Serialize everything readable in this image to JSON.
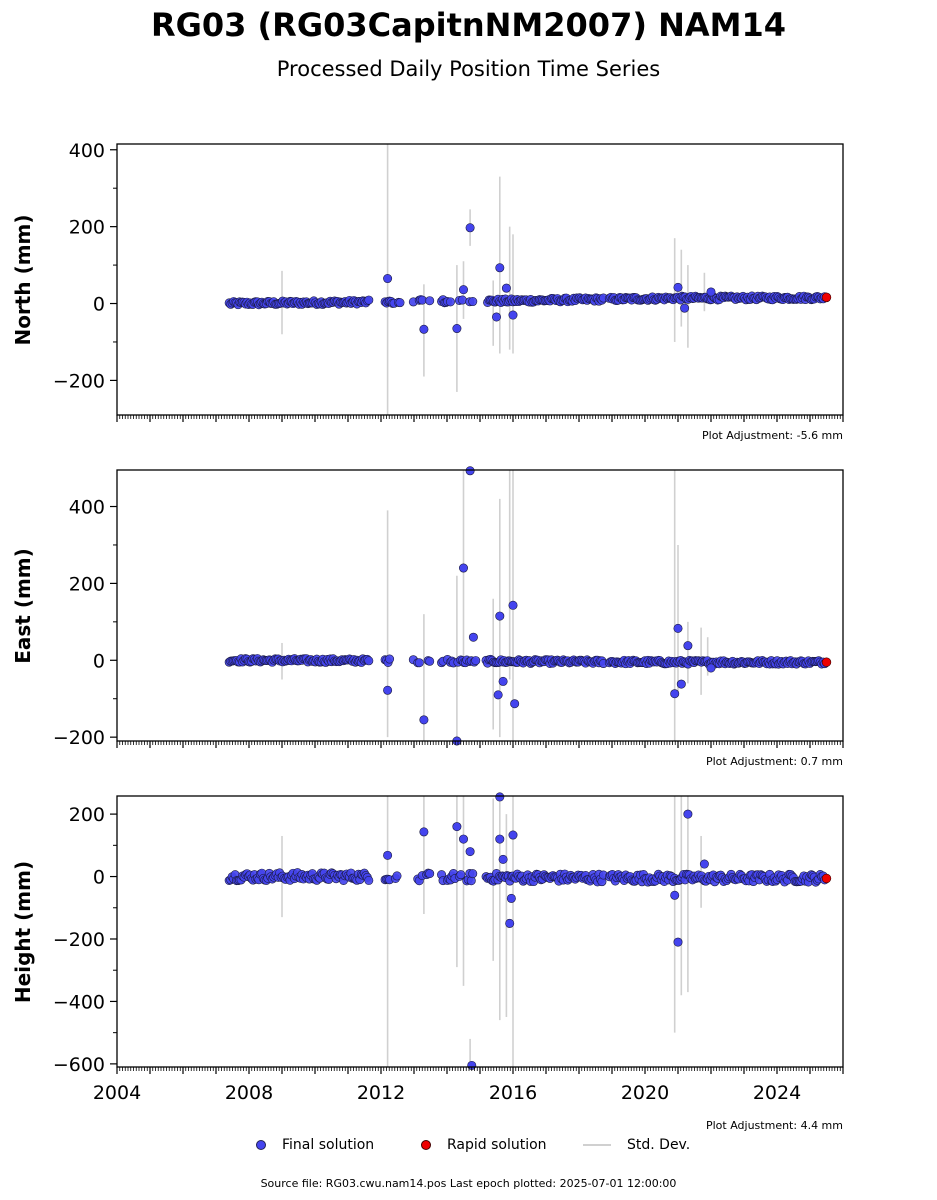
{
  "title": "RG03 (RG03CapitnNM2007) NAM14",
  "subtitle": "Processed Daily Position Time Series",
  "legend": {
    "final": "Final solution",
    "rapid": "Rapid solution",
    "std": "Std. Dev."
  },
  "source": "Source file: RG03.cwu.nam14.pos  Last epoch plotted: 2025-07-01 12:00:00",
  "colors": {
    "final": "#4444ee",
    "rapid": "#ee0000",
    "std": "#d0d0d0",
    "edge": "#1a1a40"
  },
  "chart_data": [
    {
      "type": "scatter",
      "ylabel": "North (mm)",
      "adjustment": "Plot Adjustment: -5.6 mm",
      "xlim": [
        2004,
        2026
      ],
      "ylim": [
        -290,
        415
      ],
      "yticks": [
        -200,
        0,
        200,
        400
      ],
      "ytick_labels": [
        "−200",
        "0",
        "200",
        "400"
      ],
      "baseline": [
        [
          2007.4,
          0
        ],
        [
          2011.6,
          4
        ],
        [
          2012.7,
          5
        ],
        [
          2016,
          7
        ],
        [
          2018.7,
          11
        ],
        [
          2021,
          14
        ],
        [
          2025.3,
          15
        ]
      ],
      "outliers": [
        {
          "x": 2012.2,
          "y": 65
        },
        {
          "x": 2013.3,
          "y": -67
        },
        {
          "x": 2014.3,
          "y": -65
        },
        {
          "x": 2014.5,
          "y": 36
        },
        {
          "x": 2014.7,
          "y": 197
        },
        {
          "x": 2015.6,
          "y": 93
        },
        {
          "x": 2015.5,
          "y": -35
        },
        {
          "x": 2015.8,
          "y": 40
        },
        {
          "x": 2016.0,
          "y": -30
        },
        {
          "x": 2021.0,
          "y": 42
        },
        {
          "x": 2021.2,
          "y": -12
        },
        {
          "x": 2022.0,
          "y": 30
        }
      ],
      "errorbars": [
        {
          "x": 2009.0,
          "lo": -80,
          "hi": 85
        },
        {
          "x": 2012.2,
          "lo": -290,
          "hi": 415
        },
        {
          "x": 2013.3,
          "lo": -190,
          "hi": 50
        },
        {
          "x": 2014.3,
          "lo": -230,
          "hi": 100
        },
        {
          "x": 2014.5,
          "lo": -40,
          "hi": 110
        },
        {
          "x": 2014.7,
          "lo": 150,
          "hi": 245
        },
        {
          "x": 2015.4,
          "lo": -110,
          "hi": 60
        },
        {
          "x": 2015.6,
          "lo": -130,
          "hi": 330
        },
        {
          "x": 2015.9,
          "lo": -120,
          "hi": 200
        },
        {
          "x": 2016.0,
          "lo": -130,
          "hi": 180
        },
        {
          "x": 2020.9,
          "lo": -100,
          "hi": 170
        },
        {
          "x": 2021.1,
          "lo": -60,
          "hi": 140
        },
        {
          "x": 2021.3,
          "lo": -115,
          "hi": 100
        },
        {
          "x": 2021.8,
          "lo": -20,
          "hi": 80
        }
      ],
      "rapid": [
        {
          "x": 2025.5,
          "y": 16
        }
      ],
      "gaps": [
        [
          2011.65,
          2012.1
        ],
        [
          2012.6,
          2012.95
        ],
        [
          2013.5,
          2013.8
        ],
        [
          2014.9,
          2015.15
        ],
        [
          2018.75,
          2018.9
        ]
      ]
    },
    {
      "type": "scatter",
      "ylabel": "East (mm)",
      "adjustment": "Plot Adjustment: 0.7 mm",
      "xlim": [
        2004,
        2026
      ],
      "ylim": [
        -210,
        495
      ],
      "yticks": [
        -200,
        0,
        200,
        400
      ],
      "ytick_labels": [
        "−200",
        "0",
        "200",
        "400"
      ],
      "baseline": [
        [
          2007.4,
          0
        ],
        [
          2012,
          -1
        ],
        [
          2016,
          -3
        ],
        [
          2021,
          -5
        ],
        [
          2025.5,
          -5
        ]
      ],
      "outliers": [
        {
          "x": 2012.2,
          "y": -78
        },
        {
          "x": 2013.3,
          "y": -155
        },
        {
          "x": 2014.3,
          "y": -210
        },
        {
          "x": 2014.5,
          "y": 240
        },
        {
          "x": 2014.7,
          "y": 493
        },
        {
          "x": 2014.8,
          "y": 60
        },
        {
          "x": 2015.6,
          "y": 115
        },
        {
          "x": 2015.55,
          "y": -90
        },
        {
          "x": 2015.7,
          "y": -55
        },
        {
          "x": 2016.0,
          "y": 143
        },
        {
          "x": 2016.05,
          "y": -113
        },
        {
          "x": 2020.9,
          "y": -87
        },
        {
          "x": 2021.0,
          "y": 83
        },
        {
          "x": 2021.1,
          "y": -62
        },
        {
          "x": 2021.3,
          "y": 38
        },
        {
          "x": 2022.0,
          "y": -20
        }
      ],
      "errorbars": [
        {
          "x": 2009.0,
          "lo": -50,
          "hi": 45
        },
        {
          "x": 2012.2,
          "lo": -200,
          "hi": 390
        },
        {
          "x": 2013.3,
          "lo": -210,
          "hi": 120
        },
        {
          "x": 2014.3,
          "lo": -210,
          "hi": 220
        },
        {
          "x": 2014.5,
          "lo": -10,
          "hi": 495
        },
        {
          "x": 2015.4,
          "lo": -180,
          "hi": 160
        },
        {
          "x": 2015.6,
          "lo": -200,
          "hi": 420
        },
        {
          "x": 2015.9,
          "lo": -50,
          "hi": 495
        },
        {
          "x": 2016.0,
          "lo": -210,
          "hi": 495
        },
        {
          "x": 2020.9,
          "lo": -210,
          "hi": 495
        },
        {
          "x": 2021.0,
          "lo": -90,
          "hi": 300
        },
        {
          "x": 2021.3,
          "lo": -60,
          "hi": 100
        },
        {
          "x": 2021.7,
          "lo": -90,
          "hi": 85
        },
        {
          "x": 2021.9,
          "lo": -40,
          "hi": 60
        }
      ],
      "rapid": [
        {
          "x": 2025.5,
          "y": -5
        }
      ],
      "gaps": [
        [
          2011.65,
          2012.1
        ],
        [
          2012.6,
          2012.95
        ],
        [
          2013.5,
          2013.8
        ],
        [
          2014.9,
          2015.15
        ],
        [
          2018.75,
          2018.9
        ]
      ]
    },
    {
      "type": "scatter",
      "ylabel": "Height (mm)",
      "adjustment": "Plot Adjustment: 4.4 mm",
      "xlim": [
        2004,
        2026
      ],
      "ylim": [
        -610,
        258
      ],
      "yticks": [
        -600,
        -400,
        -200,
        0,
        200
      ],
      "ytick_labels": [
        "−600",
        "−400",
        "−200",
        "0",
        "200"
      ],
      "xticks": [
        2004,
        2008,
        2012,
        2016,
        2020,
        2024
      ],
      "xtick_labels": [
        "2004",
        "2008",
        "2012",
        "2016",
        "2020",
        "2024"
      ],
      "baseline": [
        [
          2007.4,
          0
        ],
        [
          2012,
          0
        ],
        [
          2016,
          -3
        ],
        [
          2021,
          -5
        ],
        [
          2025.5,
          -5
        ]
      ],
      "outliers": [
        {
          "x": 2012.2,
          "y": 68
        },
        {
          "x": 2013.3,
          "y": 143
        },
        {
          "x": 2014.3,
          "y": 160
        },
        {
          "x": 2014.5,
          "y": 120
        },
        {
          "x": 2014.7,
          "y": 80
        },
        {
          "x": 2014.75,
          "y": -605
        },
        {
          "x": 2015.6,
          "y": 255
        },
        {
          "x": 2015.6,
          "y": 120
        },
        {
          "x": 2015.7,
          "y": 55
        },
        {
          "x": 2016.0,
          "y": 133
        },
        {
          "x": 2015.95,
          "y": -70
        },
        {
          "x": 2015.9,
          "y": -150
        },
        {
          "x": 2020.9,
          "y": -60
        },
        {
          "x": 2021.0,
          "y": -210
        },
        {
          "x": 2021.3,
          "y": 200
        },
        {
          "x": 2021.8,
          "y": 40
        }
      ],
      "errorbars": [
        {
          "x": 2009.0,
          "lo": -130,
          "hi": 130
        },
        {
          "x": 2012.2,
          "lo": -610,
          "hi": 258
        },
        {
          "x": 2013.3,
          "lo": -120,
          "hi": 258
        },
        {
          "x": 2014.3,
          "lo": -290,
          "hi": 258
        },
        {
          "x": 2014.5,
          "lo": -350,
          "hi": 258
        },
        {
          "x": 2014.7,
          "lo": -610,
          "hi": -520
        },
        {
          "x": 2015.4,
          "lo": -270,
          "hi": 250
        },
        {
          "x": 2015.6,
          "lo": -460,
          "hi": 258
        },
        {
          "x": 2015.8,
          "lo": -450,
          "hi": 200
        },
        {
          "x": 2016.0,
          "lo": -610,
          "hi": 258
        },
        {
          "x": 2020.9,
          "lo": -500,
          "hi": 258
        },
        {
          "x": 2021.1,
          "lo": -380,
          "hi": 258
        },
        {
          "x": 2021.3,
          "lo": -370,
          "hi": 258
        },
        {
          "x": 2021.7,
          "lo": -100,
          "hi": 130
        }
      ],
      "rapid": [
        {
          "x": 2025.5,
          "y": -6
        }
      ],
      "gaps": [
        [
          2011.65,
          2012.1
        ],
        [
          2012.6,
          2012.95
        ],
        [
          2013.5,
          2013.8
        ],
        [
          2014.9,
          2015.15
        ],
        [
          2018.75,
          2018.9
        ]
      ]
    }
  ]
}
